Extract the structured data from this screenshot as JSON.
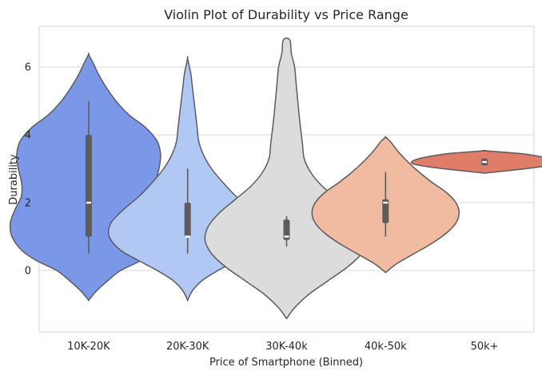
{
  "chart_data": {
    "type": "violin",
    "title": "Violin Plot of Durability vs Price Range",
    "xlabel": "Price of Smartphone (Binned)",
    "ylabel": "Durability",
    "ylim": [
      -1.8,
      7.2
    ],
    "yticks": [
      0,
      2,
      4,
      6
    ],
    "grid": true,
    "categories": [
      "10K-20K",
      "20K-30K",
      "30K-40k",
      "40k-50k",
      "50k+"
    ],
    "colors": [
      "#7b98e8",
      "#b2c8f4",
      "#dcdcdc",
      "#f0bba1",
      "#df7d68"
    ],
    "series": [
      {
        "category": "10K-20K",
        "whisker": [
          0.5,
          5.0
        ],
        "q1": 1.0,
        "median": 2.0,
        "q3": 4.0,
        "profile": [
          [
            -0.88,
            0.0
          ],
          [
            -0.6,
            0.05
          ],
          [
            -0.3,
            0.12
          ],
          [
            0.0,
            0.2
          ],
          [
            0.3,
            0.33
          ],
          [
            0.6,
            0.42
          ],
          [
            1.0,
            0.48
          ],
          [
            1.4,
            0.49
          ],
          [
            1.8,
            0.46
          ],
          [
            2.2,
            0.42
          ],
          [
            2.6,
            0.42
          ],
          [
            3.0,
            0.44
          ],
          [
            3.4,
            0.45
          ],
          [
            3.8,
            0.43
          ],
          [
            4.2,
            0.36
          ],
          [
            4.6,
            0.25
          ],
          [
            5.0,
            0.17
          ],
          [
            5.4,
            0.11
          ],
          [
            5.8,
            0.06
          ],
          [
            6.1,
            0.03
          ],
          [
            6.37,
            0.0
          ]
        ]
      },
      {
        "category": "20K-30K",
        "whisker": [
          0.5,
          3.0
        ],
        "q1": 1.0,
        "median": 1.0,
        "q3": 2.0,
        "profile": [
          [
            -0.88,
            0.0
          ],
          [
            -0.6,
            0.03
          ],
          [
            -0.3,
            0.09
          ],
          [
            0.0,
            0.19
          ],
          [
            0.3,
            0.31
          ],
          [
            0.6,
            0.42
          ],
          [
            1.0,
            0.49
          ],
          [
            1.4,
            0.48
          ],
          [
            1.8,
            0.4
          ],
          [
            2.2,
            0.3
          ],
          [
            2.6,
            0.22
          ],
          [
            3.0,
            0.15
          ],
          [
            3.4,
            0.1
          ],
          [
            3.8,
            0.07
          ],
          [
            4.2,
            0.06
          ],
          [
            4.6,
            0.05
          ],
          [
            5.0,
            0.04
          ],
          [
            5.4,
            0.03
          ],
          [
            5.8,
            0.02
          ],
          [
            6.25,
            0.0
          ]
        ]
      },
      {
        "category": "30K-40k",
        "whisker": [
          0.7,
          1.6
        ],
        "q1": 0.9,
        "median": 1.0,
        "q3": 1.5,
        "profile": [
          [
            -1.42,
            0.0
          ],
          [
            -1.1,
            0.05
          ],
          [
            -0.7,
            0.14
          ],
          [
            -0.3,
            0.26
          ],
          [
            0.1,
            0.38
          ],
          [
            0.5,
            0.47
          ],
          [
            0.9,
            0.51
          ],
          [
            1.3,
            0.49
          ],
          [
            1.7,
            0.42
          ],
          [
            2.1,
            0.32
          ],
          [
            2.5,
            0.22
          ],
          [
            2.9,
            0.15
          ],
          [
            3.3,
            0.11
          ],
          [
            3.7,
            0.1
          ],
          [
            4.1,
            0.09
          ],
          [
            4.5,
            0.08
          ],
          [
            5.0,
            0.07
          ],
          [
            5.5,
            0.06
          ],
          [
            6.0,
            0.05
          ],
          [
            6.4,
            0.03
          ],
          [
            6.8,
            0.02
          ]
        ]
      },
      {
        "category": "40k-50k",
        "whisker": [
          1.0,
          2.9
        ],
        "q1": 1.4,
        "median": 2.0,
        "q3": 2.1,
        "profile": [
          [
            -0.06,
            0.0
          ],
          [
            0.2,
            0.07
          ],
          [
            0.5,
            0.18
          ],
          [
            0.8,
            0.29
          ],
          [
            1.1,
            0.38
          ],
          [
            1.4,
            0.44
          ],
          [
            1.7,
            0.46
          ],
          [
            2.0,
            0.44
          ],
          [
            2.3,
            0.38
          ],
          [
            2.6,
            0.29
          ],
          [
            2.9,
            0.21
          ],
          [
            3.2,
            0.14
          ],
          [
            3.5,
            0.08
          ],
          [
            3.8,
            0.03
          ],
          [
            3.93,
            0.0
          ]
        ]
      },
      {
        "category": "50k+",
        "whisker": [
          3.1,
          3.3
        ],
        "q1": 3.1,
        "median": 3.2,
        "q3": 3.3,
        "profile": [
          [
            2.87,
            0.0
          ],
          [
            2.95,
            0.16
          ],
          [
            3.05,
            0.34
          ],
          [
            3.15,
            0.45
          ],
          [
            3.25,
            0.44
          ],
          [
            3.35,
            0.36
          ],
          [
            3.45,
            0.22
          ],
          [
            3.53,
            0.0
          ]
        ]
      }
    ]
  }
}
